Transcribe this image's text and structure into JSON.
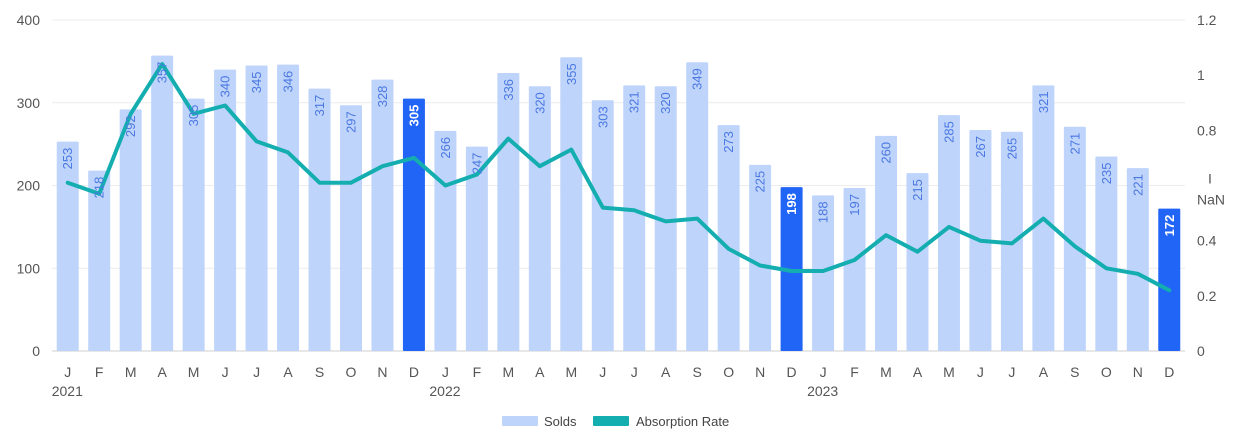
{
  "chart_data": {
    "type": "bar",
    "categories": [
      "J",
      "F",
      "M",
      "A",
      "M",
      "J",
      "J",
      "A",
      "S",
      "O",
      "N",
      "D",
      "J",
      "F",
      "M",
      "A",
      "M",
      "J",
      "J",
      "A",
      "S",
      "O",
      "N",
      "D",
      "J",
      "F",
      "M",
      "A",
      "M",
      "J",
      "J",
      "A",
      "S",
      "O",
      "N",
      "D"
    ],
    "year_labels": [
      {
        "index": 0,
        "label": "2021"
      },
      {
        "index": 12,
        "label": "2022"
      },
      {
        "index": 24,
        "label": "2023"
      }
    ],
    "series": [
      {
        "name": "Solds",
        "type": "bar",
        "axis": "left",
        "color": "#bfd4fb",
        "highlight_color": "#2165f6",
        "highlight_indices": [
          11,
          23,
          35
        ],
        "values": [
          253,
          218,
          292,
          357,
          305,
          340,
          345,
          346,
          317,
          297,
          328,
          305,
          266,
          247,
          336,
          320,
          355,
          303,
          321,
          320,
          349,
          273,
          225,
          198,
          188,
          197,
          260,
          215,
          285,
          267,
          265,
          321,
          271,
          235,
          221,
          172
        ],
        "labels": [
          "253",
          "218",
          "292",
          "357",
          "305",
          "340",
          "345",
          "346",
          "317",
          "297",
          "328",
          "305",
          "266",
          "247",
          "336",
          "320",
          "355",
          "303",
          "321",
          "320",
          "349",
          "273",
          "225",
          "198",
          "188",
          "197",
          "260",
          "215",
          "285",
          "267",
          "265",
          "321",
          "271",
          "235",
          "221",
          "172"
        ]
      },
      {
        "name": "Absorption Rate",
        "type": "line",
        "axis": "right",
        "color": "#14aeb0",
        "values": [
          0.61,
          0.57,
          0.86,
          1.04,
          0.86,
          0.89,
          0.76,
          0.72,
          0.61,
          0.61,
          0.67,
          0.7,
          0.6,
          0.64,
          0.77,
          0.67,
          0.73,
          0.52,
          0.51,
          0.47,
          0.48,
          0.37,
          0.31,
          0.29,
          0.29,
          0.33,
          0.42,
          0.36,
          0.45,
          0.4,
          0.39,
          0.48,
          0.38,
          0.3,
          0.28,
          0.22
        ]
      }
    ],
    "y_left": {
      "ticks": [
        "0",
        "100",
        "200",
        "300",
        "400"
      ],
      "min": 0,
      "max": 400
    },
    "y_right": {
      "ticks": [
        "0",
        "0.2",
        "0.4",
        "0.8",
        "1",
        "1.2"
      ],
      "tick_values": [
        0,
        0.2,
        0.4,
        0.8,
        1,
        1.2
      ],
      "min": 0,
      "max": 1.2,
      "stray_labels": [
        "I",
        "NaN"
      ]
    },
    "grid": true,
    "legend": {
      "position": "bottom-center",
      "items": [
        "Solds",
        "Absorption Rate"
      ]
    }
  }
}
